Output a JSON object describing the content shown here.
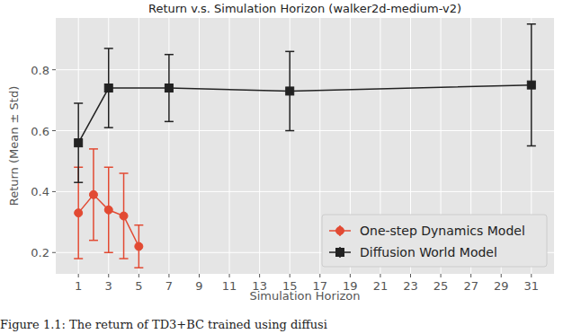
{
  "chart_data": {
    "type": "line",
    "title": "Return v.s. Simulation Horizon (walker2d-medium-v2)",
    "x_label": "Simulation Horizon",
    "y_label": "Return (Mean ± Std)",
    "caption": "Figure 1.1: The return of TD3+BC trained using diffusi",
    "xlim": [
      -0.5,
      32.5
    ],
    "xticks": [
      1,
      3,
      5,
      7,
      9,
      11,
      13,
      15,
      17,
      19,
      21,
      23,
      25,
      27,
      29,
      31
    ],
    "ylim": [
      0.13,
      0.97
    ],
    "yticks": [
      0.2,
      0.4,
      0.6,
      0.8
    ],
    "grid": true,
    "legend": "lower right",
    "series": [
      {
        "name": "One-step Dynamics Model",
        "color": "#e24a33",
        "marker": "circle",
        "x": [
          1,
          2,
          3,
          4,
          5
        ],
        "values": [
          0.33,
          0.39,
          0.34,
          0.32,
          0.22
        ],
        "errors": [
          0.15,
          0.15,
          0.14,
          0.14,
          0.07
        ]
      },
      {
        "name": "Diffusion World Model",
        "color": "#222222",
        "marker": "square",
        "x": [
          1,
          3,
          7,
          15,
          31
        ],
        "values": [
          0.56,
          0.74,
          0.74,
          0.73,
          0.75
        ],
        "errors": [
          0.13,
          0.13,
          0.11,
          0.13,
          0.2
        ]
      }
    ]
  }
}
